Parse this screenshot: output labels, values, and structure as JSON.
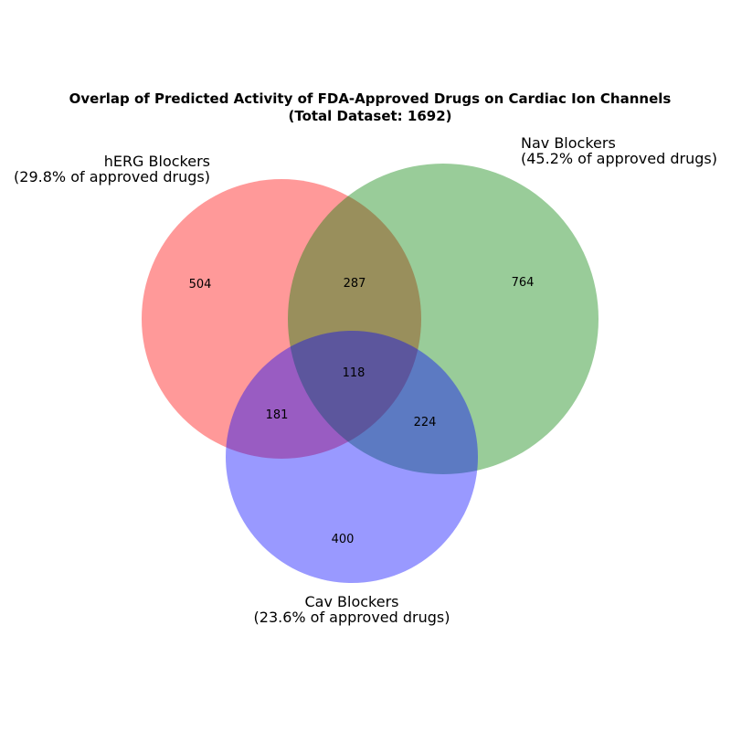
{
  "title_line1": "Overlap of Predicted Activity of FDA-Approved Drugs on Cardiac Ion Channels",
  "title_line2": "(Total Dataset: 1692)",
  "sets": {
    "herg": {
      "label": "hERG Blockers",
      "pct": "(29.8% of approved drugs)",
      "color": "#ff0000"
    },
    "nav": {
      "label": "Nav Blockers",
      "pct": "(45.2% of approved drugs)",
      "color": "#008000"
    },
    "cav": {
      "label": "Cav Blockers",
      "pct": "(23.6% of approved drugs)",
      "color": "#0000ff"
    }
  },
  "regions": {
    "herg_only": "504",
    "nav_only": "764",
    "cav_only": "400",
    "herg_nav": "287",
    "herg_cav": "181",
    "nav_cav": "224",
    "all": "118"
  }
}
